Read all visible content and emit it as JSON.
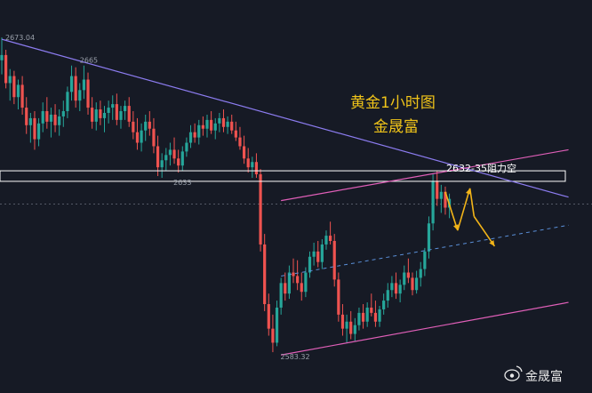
{
  "chart_data": {
    "type": "candlestick",
    "title": "黄金1小时图",
    "subtitle": "金晟富",
    "resistance_label": "2632-35阻力空",
    "watermark": "金晟富",
    "price_labels": [
      "2673.04",
      "2665",
      "2633",
      "2583.32"
    ],
    "colors": {
      "background": "#161a25",
      "up": "#26a69a",
      "down": "#ef5350",
      "descending_trendline": "#8c7cf0",
      "channel": "#e05fb8",
      "channel_mid": "#5a8fd8",
      "resistance_band": "#ffffff",
      "projection_arrows": "#f2b418",
      "title": "#f0c419"
    },
    "ohlc": [
      [
        2666.5,
        2673.0,
        2662.5,
        2668.0
      ],
      [
        2668.0,
        2669.5,
        2658.5,
        2660.0
      ],
      [
        2660.0,
        2664.0,
        2655.0,
        2662.0
      ],
      [
        2662.0,
        2663.5,
        2654.0,
        2656.0
      ],
      [
        2656.0,
        2661.0,
        2652.5,
        2659.5
      ],
      [
        2659.5,
        2662.0,
        2651.0,
        2653.0
      ],
      [
        2653.0,
        2656.0,
        2645.5,
        2648.0
      ],
      [
        2648.0,
        2651.5,
        2643.0,
        2650.0
      ],
      [
        2650.0,
        2652.0,
        2641.0,
        2644.0
      ],
      [
        2644.0,
        2650.0,
        2642.0,
        2648.5
      ],
      [
        2648.5,
        2654.5,
        2646.0,
        2652.0
      ],
      [
        2652.0,
        2656.0,
        2647.0,
        2649.0
      ],
      [
        2649.0,
        2653.0,
        2644.5,
        2651.0
      ],
      [
        2651.0,
        2654.0,
        2646.0,
        2648.0
      ],
      [
        2648.0,
        2652.5,
        2645.0,
        2650.5
      ],
      [
        2650.5,
        2655.0,
        2647.5,
        2652.0
      ],
      [
        2652.0,
        2659.0,
        2650.0,
        2657.5
      ],
      [
        2657.5,
        2665.0,
        2655.0,
        2662.0
      ],
      [
        2662.0,
        2664.5,
        2653.0,
        2655.0
      ],
      [
        2655.0,
        2660.0,
        2652.0,
        2658.0
      ],
      [
        2658.0,
        2665.0,
        2655.5,
        2661.0
      ],
      [
        2661.0,
        2663.0,
        2651.0,
        2653.0
      ],
      [
        2653.0,
        2656.0,
        2647.0,
        2649.0
      ],
      [
        2649.0,
        2654.5,
        2646.5,
        2652.5
      ],
      [
        2652.5,
        2655.0,
        2648.0,
        2650.0
      ],
      [
        2650.0,
        2653.5,
        2646.0,
        2651.5
      ],
      [
        2651.5,
        2655.0,
        2648.5,
        2653.0
      ],
      [
        2653.0,
        2656.5,
        2649.5,
        2654.0
      ],
      [
        2654.0,
        2657.0,
        2648.0,
        2649.5
      ],
      [
        2649.5,
        2653.5,
        2647.0,
        2652.0
      ],
      [
        2652.0,
        2655.0,
        2649.5,
        2653.5
      ],
      [
        2653.5,
        2656.0,
        2647.5,
        2649.0
      ],
      [
        2649.0,
        2652.0,
        2644.0,
        2646.0
      ],
      [
        2646.0,
        2650.0,
        2641.0,
        2643.0
      ],
      [
        2643.0,
        2648.5,
        2640.5,
        2646.5
      ],
      [
        2646.5,
        2651.0,
        2643.5,
        2649.0
      ],
      [
        2649.0,
        2652.0,
        2645.0,
        2647.0
      ],
      [
        2647.0,
        2650.0,
        2640.0,
        2642.0
      ],
      [
        2642.0,
        2645.0,
        2633.5,
        2636.0
      ],
      [
        2636.0,
        2640.0,
        2633.0,
        2638.0
      ],
      [
        2638.0,
        2641.5,
        2635.0,
        2639.5
      ],
      [
        2639.5,
        2643.0,
        2636.5,
        2641.0
      ],
      [
        2641.0,
        2644.5,
        2637.0,
        2638.5
      ],
      [
        2638.5,
        2641.0,
        2634.5,
        2636.5
      ],
      [
        2636.5,
        2642.0,
        2635.0,
        2640.5
      ],
      [
        2640.5,
        2644.5,
        2639.0,
        2643.0
      ],
      [
        2643.0,
        2648.0,
        2641.5,
        2646.0
      ],
      [
        2646.0,
        2648.5,
        2643.0,
        2644.5
      ],
      [
        2644.5,
        2649.5,
        2642.5,
        2648.0
      ],
      [
        2648.0,
        2650.5,
        2645.0,
        2647.0
      ],
      [
        2647.0,
        2651.0,
        2644.5,
        2649.5
      ],
      [
        2649.5,
        2652.0,
        2645.5,
        2646.5
      ],
      [
        2646.5,
        2650.0,
        2644.0,
        2648.5
      ],
      [
        2648.5,
        2651.5,
        2646.0,
        2650.0
      ],
      [
        2650.0,
        2652.5,
        2646.0,
        2647.5
      ],
      [
        2647.5,
        2650.5,
        2645.5,
        2649.0
      ],
      [
        2649.0,
        2651.0,
        2645.5,
        2646.5
      ],
      [
        2646.5,
        2649.0,
        2643.5,
        2644.5
      ],
      [
        2644.5,
        2647.5,
        2641.0,
        2642.0
      ],
      [
        2642.0,
        2645.0,
        2637.0,
        2638.5
      ],
      [
        2638.5,
        2641.5,
        2634.5,
        2636.0
      ],
      [
        2636.0,
        2639.0,
        2633.0,
        2637.5
      ],
      [
        2637.5,
        2640.0,
        2633.0,
        2634.0
      ],
      [
        2634.0,
        2635.5,
        2612.0,
        2614.0
      ],
      [
        2614.0,
        2617.0,
        2595.0,
        2597.0
      ],
      [
        2597.0,
        2600.0,
        2588.0,
        2590.0
      ],
      [
        2590.0,
        2594.0,
        2583.3,
        2586.0
      ],
      [
        2586.0,
        2598.0,
        2585.0,
        2596.0
      ],
      [
        2596.0,
        2604.5,
        2594.0,
        2603.0
      ],
      [
        2603.0,
        2606.0,
        2598.0,
        2600.0
      ],
      [
        2600.0,
        2608.0,
        2598.5,
        2606.0
      ],
      [
        2606.0,
        2610.0,
        2603.0,
        2605.0
      ],
      [
        2605.0,
        2609.5,
        2601.0,
        2603.0
      ],
      [
        2603.0,
        2606.0,
        2598.0,
        2600.5
      ],
      [
        2600.5,
        2607.5,
        2599.0,
        2606.0
      ],
      [
        2606.0,
        2612.0,
        2604.5,
        2610.5
      ],
      [
        2610.5,
        2614.5,
        2608.0,
        2612.0
      ],
      [
        2612.0,
        2615.0,
        2607.5,
        2609.0
      ],
      [
        2609.0,
        2615.5,
        2607.0,
        2614.0
      ],
      [
        2614.0,
        2618.0,
        2612.5,
        2616.5
      ],
      [
        2616.5,
        2620.5,
        2614.0,
        2615.0
      ],
      [
        2615.0,
        2617.0,
        2602.0,
        2604.0
      ],
      [
        2604.0,
        2606.0,
        2592.0,
        2594.0
      ],
      [
        2594.0,
        2597.0,
        2588.0,
        2590.0
      ],
      [
        2590.0,
        2594.0,
        2586.0,
        2592.0
      ],
      [
        2592.0,
        2595.0,
        2587.0,
        2588.5
      ],
      [
        2588.5,
        2593.0,
        2586.5,
        2591.0
      ],
      [
        2591.0,
        2596.0,
        2589.5,
        2594.5
      ],
      [
        2594.5,
        2597.0,
        2590.0,
        2592.0
      ],
      [
        2592.0,
        2597.5,
        2590.5,
        2596.0
      ],
      [
        2596.0,
        2600.0,
        2593.5,
        2594.5
      ],
      [
        2594.5,
        2598.0,
        2590.5,
        2592.0
      ],
      [
        2592.0,
        2596.5,
        2590.5,
        2595.5
      ],
      [
        2595.5,
        2600.0,
        2594.0,
        2598.0
      ],
      [
        2598.0,
        2603.0,
        2596.0,
        2601.0
      ],
      [
        2601.0,
        2605.0,
        2599.0,
        2603.0
      ],
      [
        2603.0,
        2606.0,
        2598.5,
        2600.0
      ],
      [
        2600.0,
        2604.0,
        2597.5,
        2602.5
      ],
      [
        2602.5,
        2608.0,
        2601.0,
        2606.0
      ],
      [
        2606.0,
        2610.0,
        2603.0,
        2604.5
      ],
      [
        2604.5,
        2606.0,
        2599.5,
        2601.0
      ],
      [
        2601.0,
        2606.5,
        2600.0,
        2604.5
      ],
      [
        2604.5,
        2609.0,
        2602.0,
        2607.0
      ],
      [
        2607.0,
        2613.0,
        2605.0,
        2612.0
      ],
      [
        2612.0,
        2622.0,
        2610.0,
        2620.0
      ],
      [
        2620.0,
        2634.0,
        2618.0,
        2632.0
      ],
      [
        2632.0,
        2635.0,
        2625.0,
        2627.0
      ],
      [
        2627.0,
        2631.0,
        2623.0,
        2629.0
      ],
      [
        2629.0,
        2630.5,
        2622.5,
        2624.5
      ],
      [
        2624.5,
        2628.5,
        2621.5,
        2627.0
      ]
    ],
    "trendlines": {
      "descending_resistance": [
        [
          0,
          2672.5
        ],
        [
          138,
          2627.5
        ]
      ],
      "channel_upper": [
        [
          68,
          2626.5
        ],
        [
          138,
          2641.0
        ]
      ],
      "channel_lower": [
        [
          68,
          2582.5
        ],
        [
          138,
          2597.5
        ]
      ],
      "channel_mid": [
        [
          68,
          2605.0
        ],
        [
          138,
          2619.5
        ]
      ]
    },
    "resistance_zone": [
      2632,
      2635
    ],
    "current_price": 2625.5,
    "projection_path": [
      [
        111,
        2626.5
      ],
      [
        114,
        2630.0
      ],
      [
        120,
        2613.5
      ]
    ]
  }
}
